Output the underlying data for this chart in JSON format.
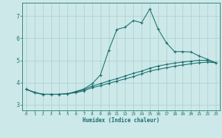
{
  "bg_color": "#cce8e8",
  "line_color": "#1a6e6e",
  "grid_color": "#aacccc",
  "xlabel": "Humidex (Indice chaleur)",
  "xlim": [
    -0.5,
    23.5
  ],
  "ylim": [
    2.75,
    7.6
  ],
  "yticks": [
    3,
    4,
    5,
    6,
    7
  ],
  "xticks": [
    0,
    1,
    2,
    3,
    4,
    5,
    6,
    7,
    8,
    9,
    10,
    11,
    12,
    13,
    14,
    15,
    16,
    17,
    18,
    19,
    20,
    21,
    22,
    23
  ],
  "line1_x": [
    0,
    1,
    2,
    3,
    4,
    5,
    6,
    7,
    8,
    9,
    10,
    11,
    12,
    13,
    14,
    15,
    16,
    17,
    18,
    19,
    20,
    21,
    22,
    23
  ],
  "line1_y": [
    3.7,
    3.55,
    3.48,
    3.48,
    3.48,
    3.5,
    3.6,
    3.72,
    3.95,
    4.35,
    5.45,
    6.4,
    6.5,
    6.8,
    6.7,
    7.32,
    6.42,
    5.8,
    5.4,
    5.4,
    5.38,
    5.2,
    5.05,
    4.9
  ],
  "line2_x": [
    0,
    1,
    2,
    3,
    4,
    5,
    6,
    7,
    8,
    9,
    10,
    11,
    12,
    13,
    14,
    15,
    16,
    17,
    18,
    19,
    20,
    21,
    22,
    23
  ],
  "line2_y": [
    3.7,
    3.57,
    3.48,
    3.48,
    3.48,
    3.5,
    3.58,
    3.68,
    3.85,
    3.95,
    4.08,
    4.18,
    4.3,
    4.42,
    4.52,
    4.65,
    4.75,
    4.82,
    4.88,
    4.93,
    4.97,
    5.01,
    5.0,
    4.9
  ],
  "line3_x": [
    0,
    1,
    2,
    3,
    4,
    5,
    6,
    7,
    8,
    9,
    10,
    11,
    12,
    13,
    14,
    15,
    16,
    17,
    18,
    19,
    20,
    21,
    22,
    23
  ],
  "line3_y": [
    3.7,
    3.55,
    3.48,
    3.48,
    3.48,
    3.5,
    3.55,
    3.63,
    3.78,
    3.86,
    3.97,
    4.07,
    4.17,
    4.27,
    4.4,
    4.52,
    4.6,
    4.67,
    4.74,
    4.8,
    4.85,
    4.9,
    4.92,
    4.9
  ]
}
